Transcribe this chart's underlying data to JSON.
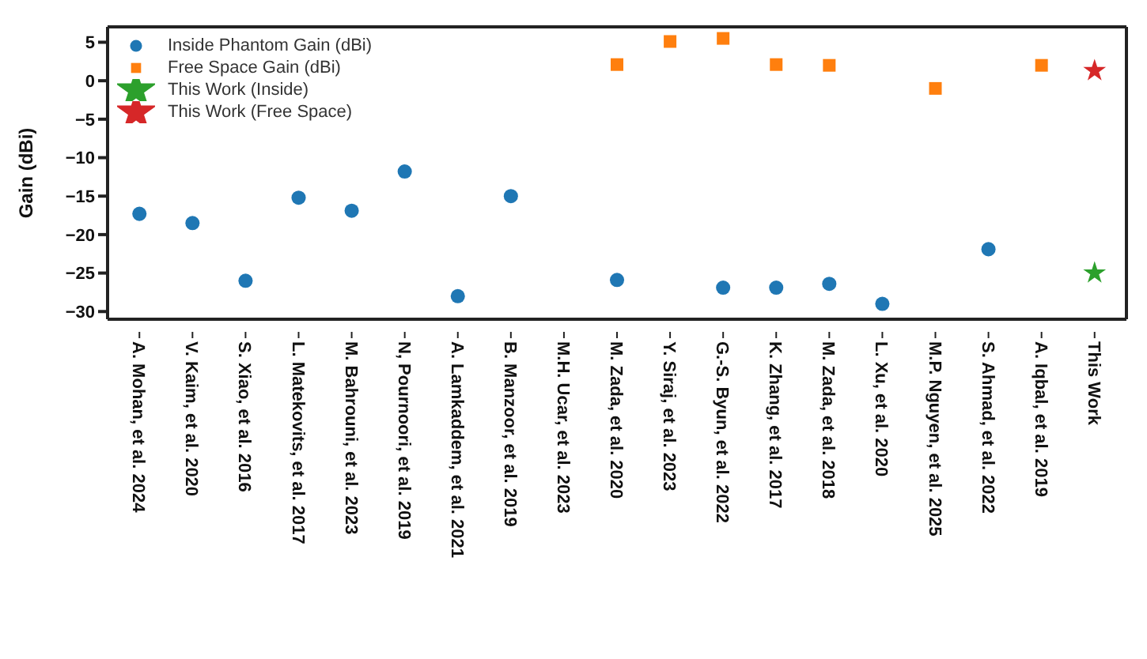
{
  "chart_data": {
    "type": "scatter",
    "ylabel": "Gain (dBi)",
    "categories": [
      "A. Mohan, et al. 2024",
      "V. Kaim, et al. 2020",
      "S. Xiao, et al. 2016",
      "L. Matekovits, et al. 2017",
      "M. Bahrouni, et al. 2023",
      "N, Pournoori, et al. 2019",
      "A. Lamkaddem, et al. 2021",
      "B. Manzoor, et al. 2019",
      "M.H. Ucar, et al. 2023",
      "M. Zada, et al. 2020",
      "Y. Siraj, et al. 2023",
      "G.-S. Byun, et al. 2022",
      "K. Zhang, et al. 2017",
      "M. Zada, et al. 2018",
      "L. Xu, et al. 2020",
      "M.P. Nguyen, et al. 2025",
      "S. Ahmad, et al. 2022",
      "A. Iqbal, et al. 2019",
      "This Work"
    ],
    "series": [
      {
        "name": "Inside Phantom Gain (dBi)",
        "color": "#1f77b4",
        "marker": "circle",
        "values": [
          -17.3,
          -18.5,
          -26.0,
          -15.2,
          -16.9,
          -11.8,
          -28.0,
          -15.0,
          null,
          -25.9,
          null,
          -26.9,
          -26.9,
          -26.4,
          -29.0,
          null,
          -21.9,
          null,
          null
        ]
      },
      {
        "name": "Free Space Gain (dBi)",
        "color": "#ff7f0e",
        "marker": "square",
        "values": [
          null,
          null,
          null,
          null,
          null,
          null,
          null,
          null,
          null,
          2.1,
          5.1,
          5.5,
          2.1,
          2.0,
          null,
          -1.0,
          null,
          2.0,
          null
        ]
      },
      {
        "name": "This Work (Inside)",
        "color": "#2ca02c",
        "marker": "star",
        "values": [
          null,
          null,
          null,
          null,
          null,
          null,
          null,
          null,
          null,
          null,
          null,
          null,
          null,
          null,
          null,
          null,
          null,
          null,
          -25.0
        ]
      },
      {
        "name": "This Work (Free Space)",
        "color": "#d62728",
        "marker": "star",
        "values": [
          null,
          null,
          null,
          null,
          null,
          null,
          null,
          null,
          null,
          null,
          null,
          null,
          null,
          null,
          null,
          null,
          null,
          null,
          1.3
        ]
      }
    ],
    "ylim": [
      -31,
      7
    ],
    "yticks": [
      5,
      0,
      -5,
      -10,
      -15,
      -20,
      -25,
      -30
    ],
    "grid": false,
    "legend": "top left"
  }
}
